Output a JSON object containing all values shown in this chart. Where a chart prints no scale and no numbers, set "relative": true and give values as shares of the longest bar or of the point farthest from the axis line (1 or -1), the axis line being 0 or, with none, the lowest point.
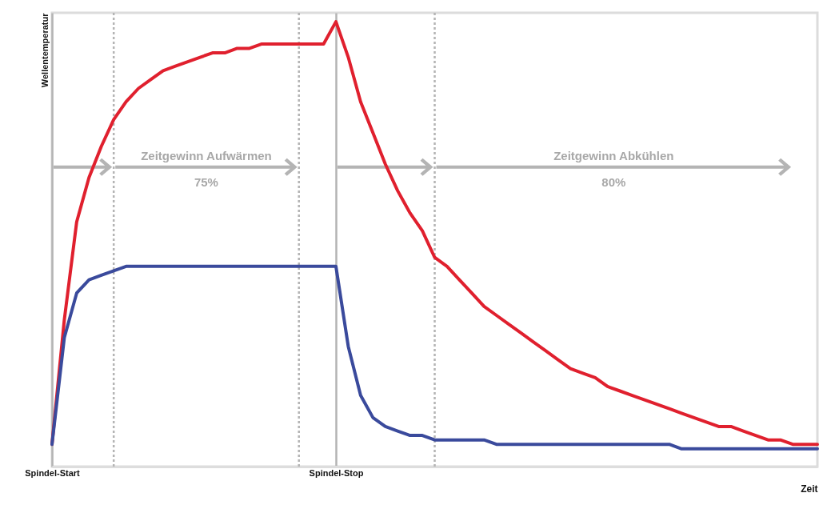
{
  "chart_data": {
    "type": "line",
    "relative": true,
    "ylabel": "Wellentemperatur",
    "xlabel": "Zeit",
    "categories": [
      "Spindel-Start",
      null,
      null,
      null,
      null,
      null,
      null,
      null,
      null,
      null,
      null,
      null,
      null,
      null,
      null,
      null,
      null,
      null,
      null,
      null,
      null,
      null,
      null,
      "Spindel-Stop",
      null,
      null,
      null,
      null,
      null,
      null,
      null,
      null,
      null,
      null,
      null,
      null,
      null,
      null,
      null,
      null,
      null,
      null,
      null,
      null,
      null,
      null,
      null,
      null,
      null,
      null,
      null,
      null,
      null,
      null,
      null,
      null,
      null,
      null,
      null,
      null,
      null,
      null,
      null
    ],
    "grid": "x",
    "marker": "none",
    "line_style": "solid",
    "series": [
      {
        "color": "#e0202e",
        "values": [
          0.05,
          0.33,
          0.55,
          0.65,
          0.72,
          0.78,
          0.82,
          0.85,
          0.87,
          0.89,
          0.9,
          0.91,
          0.92,
          0.93,
          0.93,
          0.94,
          0.94,
          0.95,
          0.95,
          0.95,
          0.95,
          0.95,
          0.95,
          1.0,
          0.92,
          0.82,
          0.75,
          0.68,
          0.62,
          0.57,
          0.53,
          0.47,
          0.45,
          0.42,
          0.39,
          0.36,
          0.34,
          0.32,
          0.3,
          0.28,
          0.26,
          0.24,
          0.22,
          0.21,
          0.2,
          0.18,
          0.17,
          0.16,
          0.15,
          0.14,
          0.13,
          0.12,
          0.11,
          0.1,
          0.09,
          0.09,
          0.08,
          0.07,
          0.06,
          0.06,
          0.05,
          0.05,
          0.05
        ]
      },
      {
        "color": "#3a4a9c",
        "values": [
          0.05,
          0.29,
          0.39,
          0.42,
          0.43,
          0.44,
          0.45,
          0.45,
          0.45,
          0.45,
          0.45,
          0.45,
          0.45,
          0.45,
          0.45,
          0.45,
          0.45,
          0.45,
          0.45,
          0.45,
          0.45,
          0.45,
          0.45,
          0.45,
          0.27,
          0.16,
          0.11,
          0.09,
          0.08,
          0.07,
          0.07,
          0.06,
          0.06,
          0.06,
          0.06,
          0.06,
          0.05,
          0.05,
          0.05,
          0.05,
          0.05,
          0.05,
          0.05,
          0.05,
          0.05,
          0.05,
          0.05,
          0.05,
          0.05,
          0.05,
          0.05,
          0.04,
          0.04,
          0.04,
          0.04,
          0.04,
          0.04,
          0.04,
          0.04,
          0.04,
          0.04,
          0.04,
          0.04
        ]
      }
    ],
    "annotations": [
      "Zeitgewinn Aufwärmen",
      "75%",
      "Zeitgewinn Abkühlen",
      "80%"
    ]
  }
}
